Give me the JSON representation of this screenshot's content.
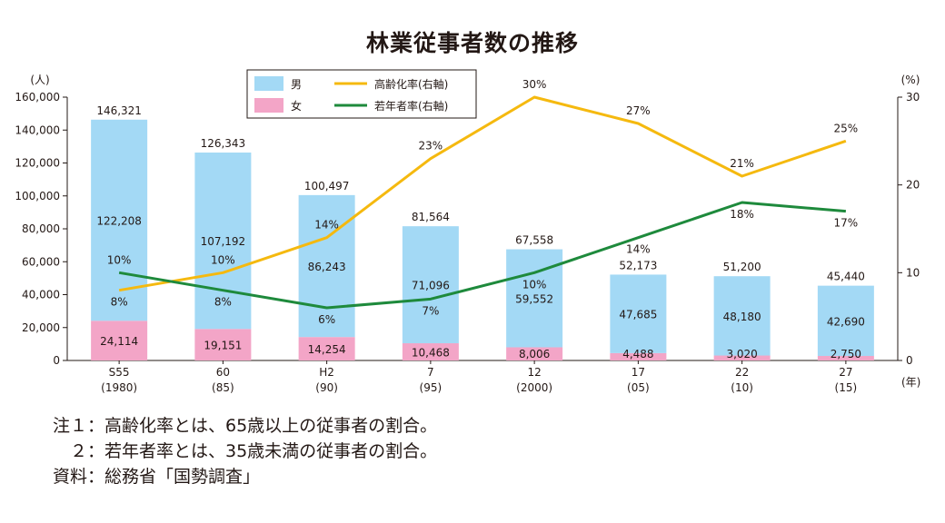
{
  "title": "林業従事者数の推移",
  "chart_data": {
    "type": "bar",
    "categories": [
      "S55",
      "60",
      "H2",
      "7",
      "12",
      "17",
      "22",
      "27"
    ],
    "category_sublabels": [
      "(1980)",
      "(85)",
      "(90)",
      "(95)",
      "(2000)",
      "(05)",
      "(10)",
      "(15)"
    ],
    "x_unit": "(年)",
    "y_left": {
      "unit": "(人)",
      "min": 0,
      "max": 160000,
      "ticks": [
        0,
        20000,
        40000,
        60000,
        80000,
        100000,
        120000,
        140000,
        160000
      ],
      "tick_labels": [
        "0",
        "20,000",
        "40,000",
        "60,000",
        "80,000",
        "100,000",
        "120,000",
        "140,000",
        "160,000"
      ]
    },
    "y_right": {
      "unit": "(%)",
      "min": 0,
      "max": 30,
      "ticks": [
        0,
        10,
        20,
        30
      ],
      "tick_labels": [
        "0",
        "10",
        "20",
        "30"
      ]
    },
    "stacked": true,
    "series": [
      {
        "name": "女",
        "kind": "bar",
        "color": "#f3a5c7",
        "values": [
          24114,
          19151,
          14254,
          10468,
          8006,
          4488,
          3020,
          2750
        ],
        "labels": [
          "24,114",
          "19,151",
          "14,254",
          "10,468",
          "8,006",
          "4,488",
          "3,020",
          "2,750"
        ]
      },
      {
        "name": "男",
        "kind": "bar",
        "color": "#a3d9f5",
        "values": [
          122208,
          107192,
          86243,
          71096,
          59552,
          47685,
          48180,
          42690
        ],
        "labels": [
          "122,208",
          "107,192",
          "86,243",
          "71,096",
          "59,552",
          "47,685",
          "48,180",
          "42,690"
        ]
      },
      {
        "name": "高齢化率(右軸)",
        "kind": "line",
        "axis": "right",
        "color": "#f5b90f",
        "values": [
          8,
          10,
          14,
          23,
          30,
          27,
          21,
          25
        ],
        "labels": [
          "8%",
          "10%",
          "14%",
          "23%",
          "30%",
          "27%",
          "21%",
          "25%"
        ]
      },
      {
        "name": "若年者率(右軸)",
        "kind": "line",
        "axis": "right",
        "color": "#1e8a3c",
        "values": [
          10,
          8,
          6,
          7,
          10,
          14,
          18,
          17
        ],
        "labels": [
          "10%",
          "8%",
          "6%",
          "7%",
          "10%",
          "14%",
          "18%",
          "17%"
        ]
      }
    ],
    "totals": [
      "146,321",
      "126,343",
      "100,497",
      "81,564",
      "67,558",
      "52,173",
      "51,200",
      "45,440"
    ],
    "legend": {
      "placement": "top-left",
      "order": [
        "男",
        "女",
        "高齢化率(右軸)",
        "若年者率(右軸)"
      ]
    }
  },
  "notes": [
    "注１：高齢化率とは、65歳以上の従事者の割合。",
    "　２：若年者率とは、35歳未満の従事者の割合。",
    "資料：総務省「国勢調査」"
  ]
}
